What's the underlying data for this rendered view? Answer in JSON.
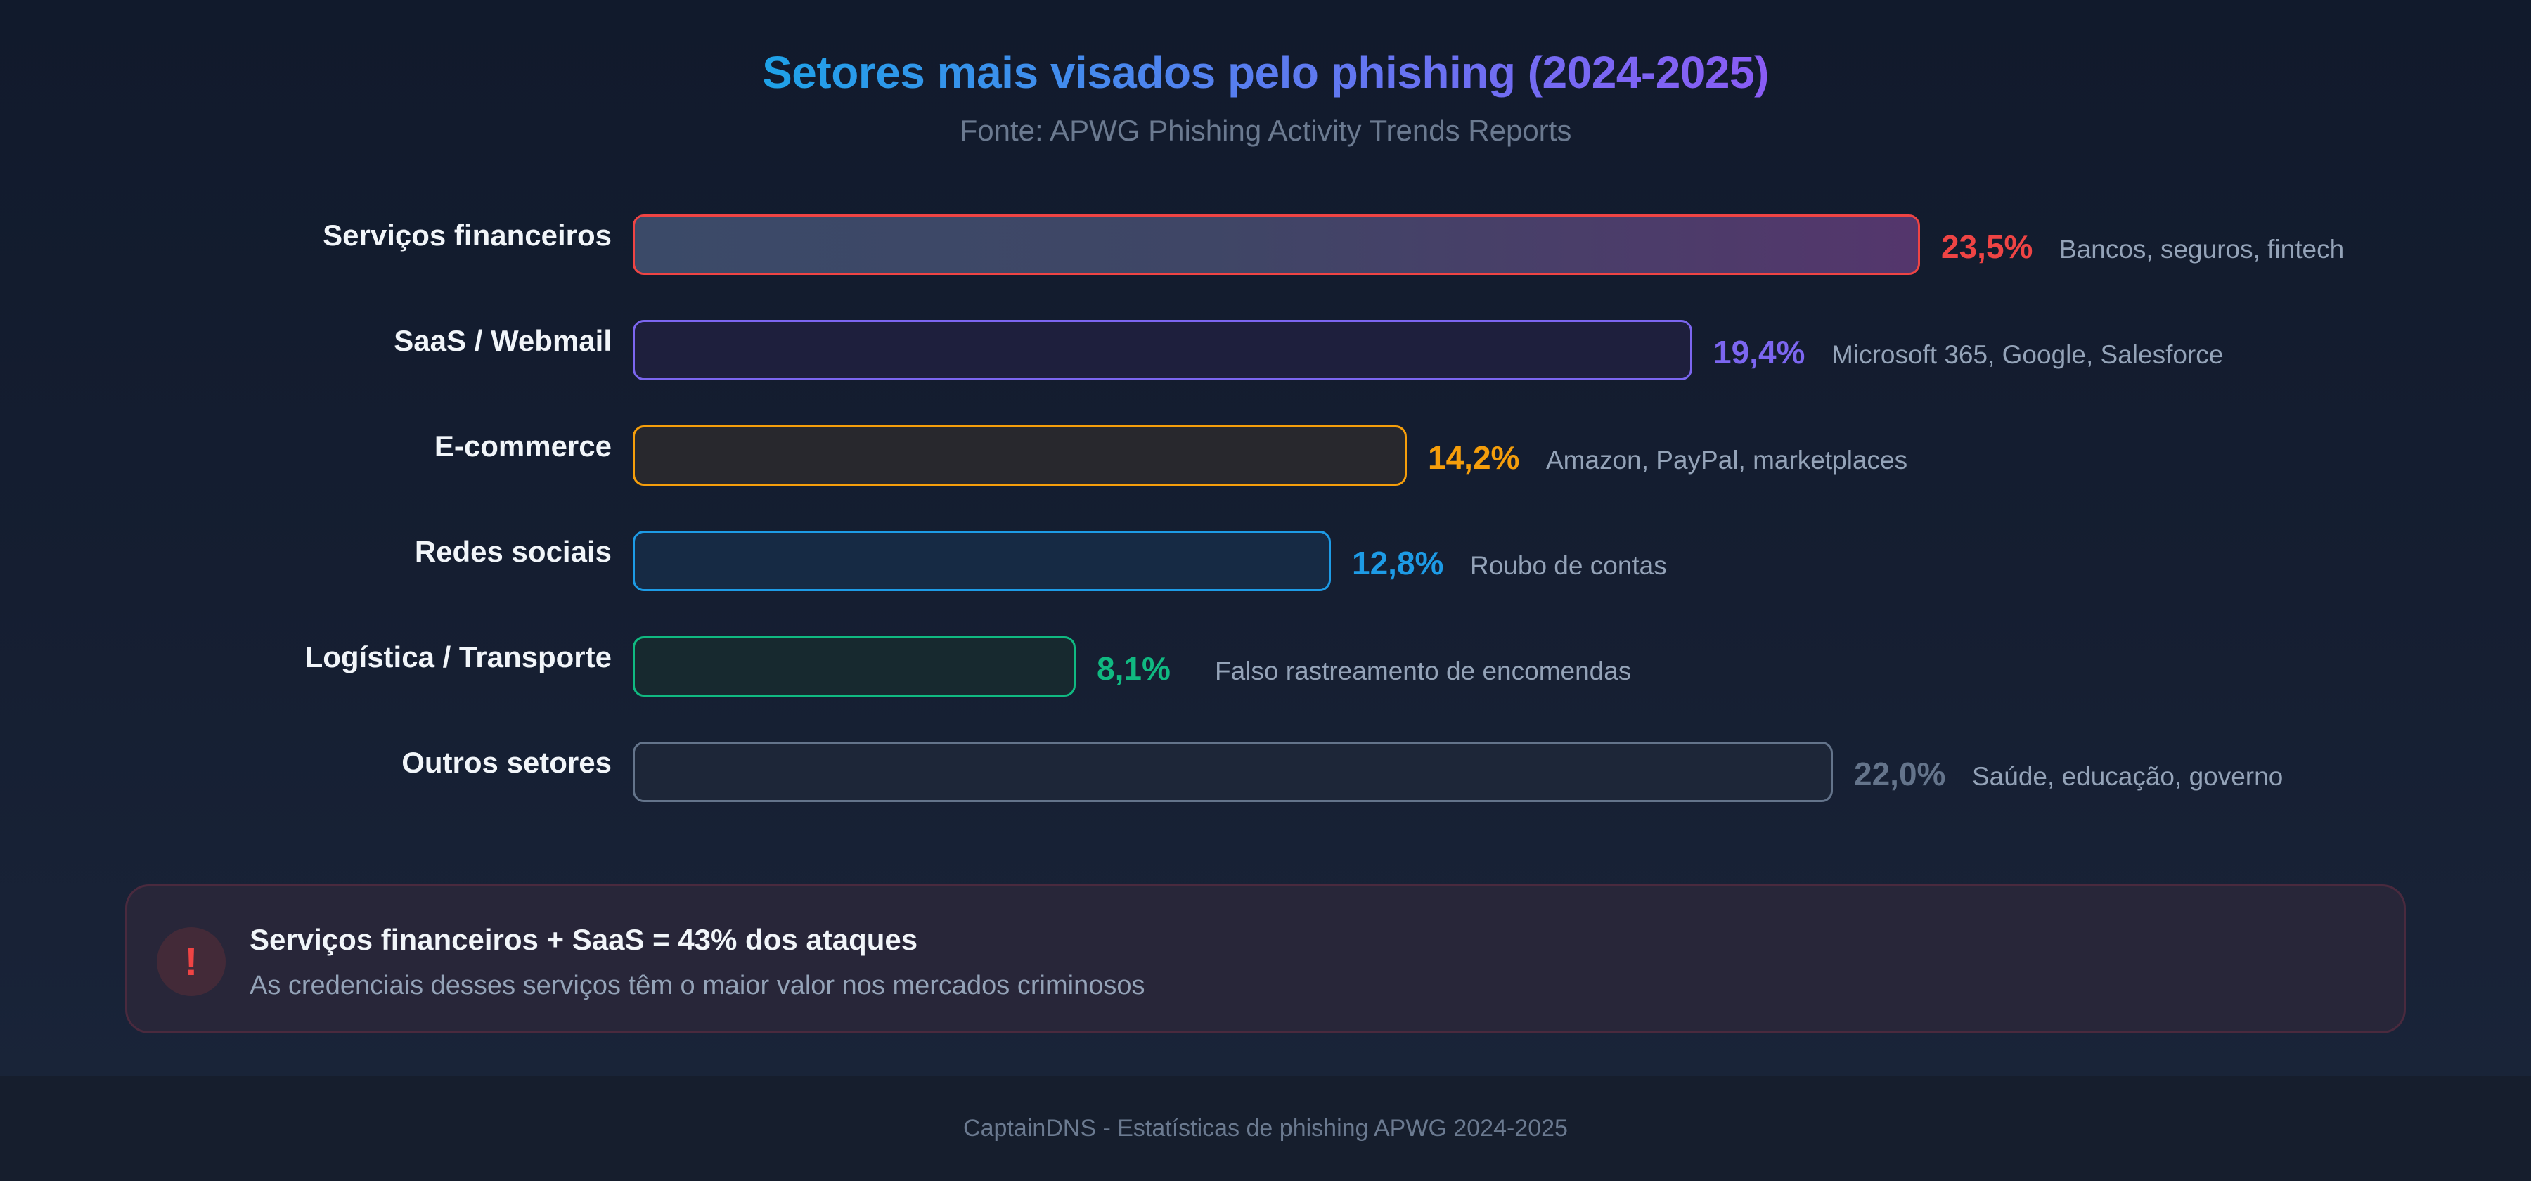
{
  "header": {
    "title": "Setores mais visados pelo phishing (2024-2025)",
    "subtitle": "Fonte: APWG Phishing Activity Trends Reports"
  },
  "rows": [
    {
      "label": "Serviços financeiros",
      "value_text": "23,5%",
      "value": 23.5,
      "description": "Bancos, seguros, fintech",
      "color": "#ef4444",
      "bar_end": 2731
    },
    {
      "label": "SaaS / Webmail",
      "value_text": "19,4%",
      "value": 19.4,
      "description": "Microsoft 365, Google, Salesforce",
      "color": "#7c66f0",
      "bar_end": 2407
    },
    {
      "label": "E-commerce",
      "value_text": "14,2%",
      "value": 14.2,
      "description": "Amazon, PayPal, marketplaces",
      "color": "#f59e0b",
      "bar_end": 2001
    },
    {
      "label": "Redes sociais",
      "value_text": "12,8%",
      "value": 12.8,
      "description": "Roubo de contas",
      "color": "#1d9be6",
      "bar_end": 1893
    },
    {
      "label": "Logística / Transporte",
      "value_text": "8,1%",
      "value": 8.1,
      "description": "Falso rastreamento de encomendas",
      "color": "#10b981",
      "bar_end": 1530
    },
    {
      "label": "Outros setores",
      "value_text": "22,0%",
      "value": 22.0,
      "description": "Saúde, educação, governo",
      "color": "#64748b",
      "bar_end": 2607
    }
  ],
  "callout": {
    "icon": "alert-icon",
    "icon_glyph": "!",
    "title": "Serviços financeiros + SaaS = 43% dos ataques",
    "text": "As credenciais desses serviços têm o maior valor nos mercados criminosos"
  },
  "footer": {
    "text": "CaptainDNS - Estatísticas de phishing APWG 2024-2025"
  },
  "chart_data": {
    "type": "bar",
    "orientation": "horizontal",
    "title": "Setores mais visados pelo phishing (2024-2025)",
    "subtitle": "Fonte: APWG Phishing Activity Trends Reports",
    "categories": [
      "Serviços financeiros",
      "SaaS / Webmail",
      "E-commerce",
      "Redes sociais",
      "Logística / Transporte",
      "Outros setores"
    ],
    "values": [
      23.5,
      19.4,
      14.2,
      12.8,
      8.1,
      22.0
    ],
    "value_labels": [
      "23,5%",
      "19,4%",
      "14,2%",
      "12,8%",
      "8,1%",
      "22,0%"
    ],
    "annotations": [
      "Bancos, seguros, fintech",
      "Microsoft 365, Google, Salesforce",
      "Amazon, PayPal, marketplaces",
      "Roubo de contas",
      "Falso rastreamento de encomendas",
      "Saúde, educação, governo"
    ],
    "colors": [
      "#ef4444",
      "#7c66f0",
      "#f59e0b",
      "#1d9be6",
      "#10b981",
      "#64748b"
    ],
    "unit": "%",
    "xlabel": "",
    "ylabel": "",
    "grid": false,
    "legend": "none"
  }
}
